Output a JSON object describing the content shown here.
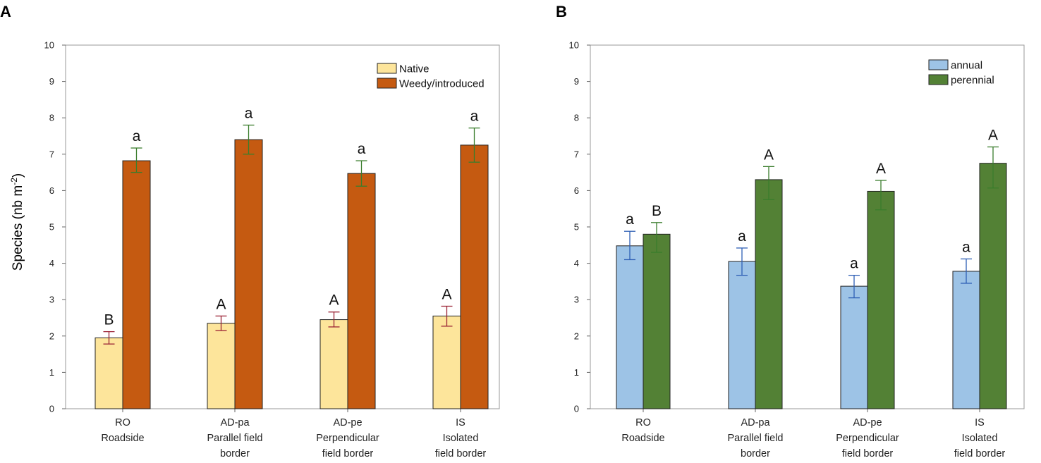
{
  "chart_data": [
    {
      "panel": "A",
      "type": "bar",
      "ylabel": "Species (nb m",
      "ylabel_sup": "-2",
      "ylabel_close": ")",
      "ylim": [
        0,
        10
      ],
      "yticks": [
        "0",
        "1",
        "2",
        "3",
        "4",
        "5",
        "6",
        "7",
        "8",
        "9",
        "10"
      ],
      "categories": [
        [
          "RO",
          "Roadside"
        ],
        [
          "AD-pa",
          "Parallel field",
          "border"
        ],
        [
          "AD-pe",
          "Perpendicular",
          "field border"
        ],
        [
          "IS",
          "Isolated",
          "field border"
        ]
      ],
      "legend_position": "top-right",
      "series": [
        {
          "name": "Native",
          "color": "#fde59b",
          "error_color": "#9b2335",
          "values": [
            1.95,
            2.35,
            2.45,
            2.55
          ],
          "err_low": [
            1.78,
            2.15,
            2.25,
            2.27
          ],
          "err_high": [
            2.12,
            2.55,
            2.66,
            2.82
          ],
          "letters": [
            "B",
            "A",
            "A",
            "A"
          ]
        },
        {
          "name": "Weedy/introduced",
          "color": "#c55a11",
          "error_color": "#3a7d2c",
          "values": [
            6.82,
            7.4,
            6.47,
            7.25
          ],
          "err_low": [
            6.5,
            7.0,
            6.12,
            6.78
          ],
          "err_high": [
            7.17,
            7.8,
            6.82,
            7.72
          ],
          "letters": [
            "a",
            "a",
            "a",
            "a"
          ]
        }
      ]
    },
    {
      "panel": "B",
      "type": "bar",
      "ylim": [
        0,
        10
      ],
      "yticks": [
        "0",
        "1",
        "2",
        "3",
        "4",
        "5",
        "6",
        "7",
        "8",
        "9",
        "10"
      ],
      "categories": [
        [
          "RO",
          "Roadside"
        ],
        [
          "AD-pa",
          "Parallel field",
          "border"
        ],
        [
          "AD-pe",
          "Perpendicular",
          "field border"
        ],
        [
          "IS",
          "Isolated",
          "field border"
        ]
      ],
      "legend_position": "top-right",
      "series": [
        {
          "name": "annual",
          "color": "#9dc3e6",
          "error_color": "#2e5fb5",
          "values": [
            4.48,
            4.05,
            3.37,
            3.78
          ],
          "err_low": [
            4.1,
            3.67,
            3.05,
            3.45
          ],
          "err_high": [
            4.88,
            4.42,
            3.67,
            4.12
          ],
          "letters": [
            "a",
            "a",
            "a",
            "a"
          ]
        },
        {
          "name": "perennial",
          "color": "#538135",
          "error_color": "#3a7d2c",
          "values": [
            4.8,
            6.3,
            5.98,
            6.75
          ],
          "err_low": [
            4.3,
            5.75,
            5.47,
            6.07
          ],
          "err_high": [
            5.12,
            6.66,
            6.28,
            7.2
          ],
          "letters": [
            "B",
            "A",
            "A",
            "A"
          ]
        }
      ]
    }
  ]
}
